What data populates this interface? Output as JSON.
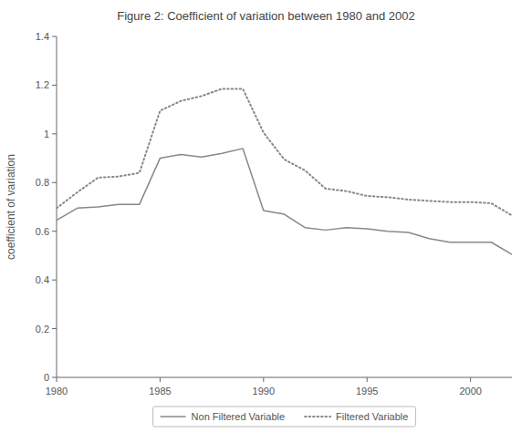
{
  "chart_data": {
    "type": "line",
    "title": "Figure 2:  Coefficient of variation between 1980 and 2002",
    "y_label": "coefficient of variation",
    "x": [
      1980,
      1981,
      1982,
      1983,
      1984,
      1985,
      1986,
      1987,
      1988,
      1989,
      1990,
      1991,
      1992,
      1993,
      1994,
      1995,
      1996,
      1997,
      1998,
      1999,
      2000,
      2001,
      2002
    ],
    "xlim": [
      1980,
      2002
    ],
    "xticks": [
      1980,
      1985,
      1990,
      1995,
      2000
    ],
    "ylim": [
      0,
      1.4
    ],
    "yticks": [
      0,
      0.2,
      0.4,
      0.6,
      0.8,
      1,
      1.2,
      1.4
    ],
    "series": [
      {
        "name": "Non Filtered Variable",
        "color": "#888888",
        "line_style": "solid",
        "values": [
          0.645,
          0.695,
          0.7,
          0.71,
          0.71,
          0.9,
          0.915,
          0.905,
          0.92,
          0.94,
          0.685,
          0.67,
          0.615,
          0.605,
          0.615,
          0.61,
          0.6,
          0.595,
          0.57,
          0.555,
          0.555,
          0.555,
          0.505
        ]
      },
      {
        "name": "Filtered Variable",
        "color": "#888888",
        "line_style": "dotted",
        "values": [
          0.695,
          0.76,
          0.82,
          0.825,
          0.84,
          1.095,
          1.135,
          1.155,
          1.185,
          1.185,
          1.005,
          0.895,
          0.85,
          0.775,
          0.765,
          0.745,
          0.74,
          0.73,
          0.725,
          0.72,
          0.72,
          0.715,
          0.665
        ]
      }
    ],
    "grid": false,
    "legend": "bottom"
  }
}
